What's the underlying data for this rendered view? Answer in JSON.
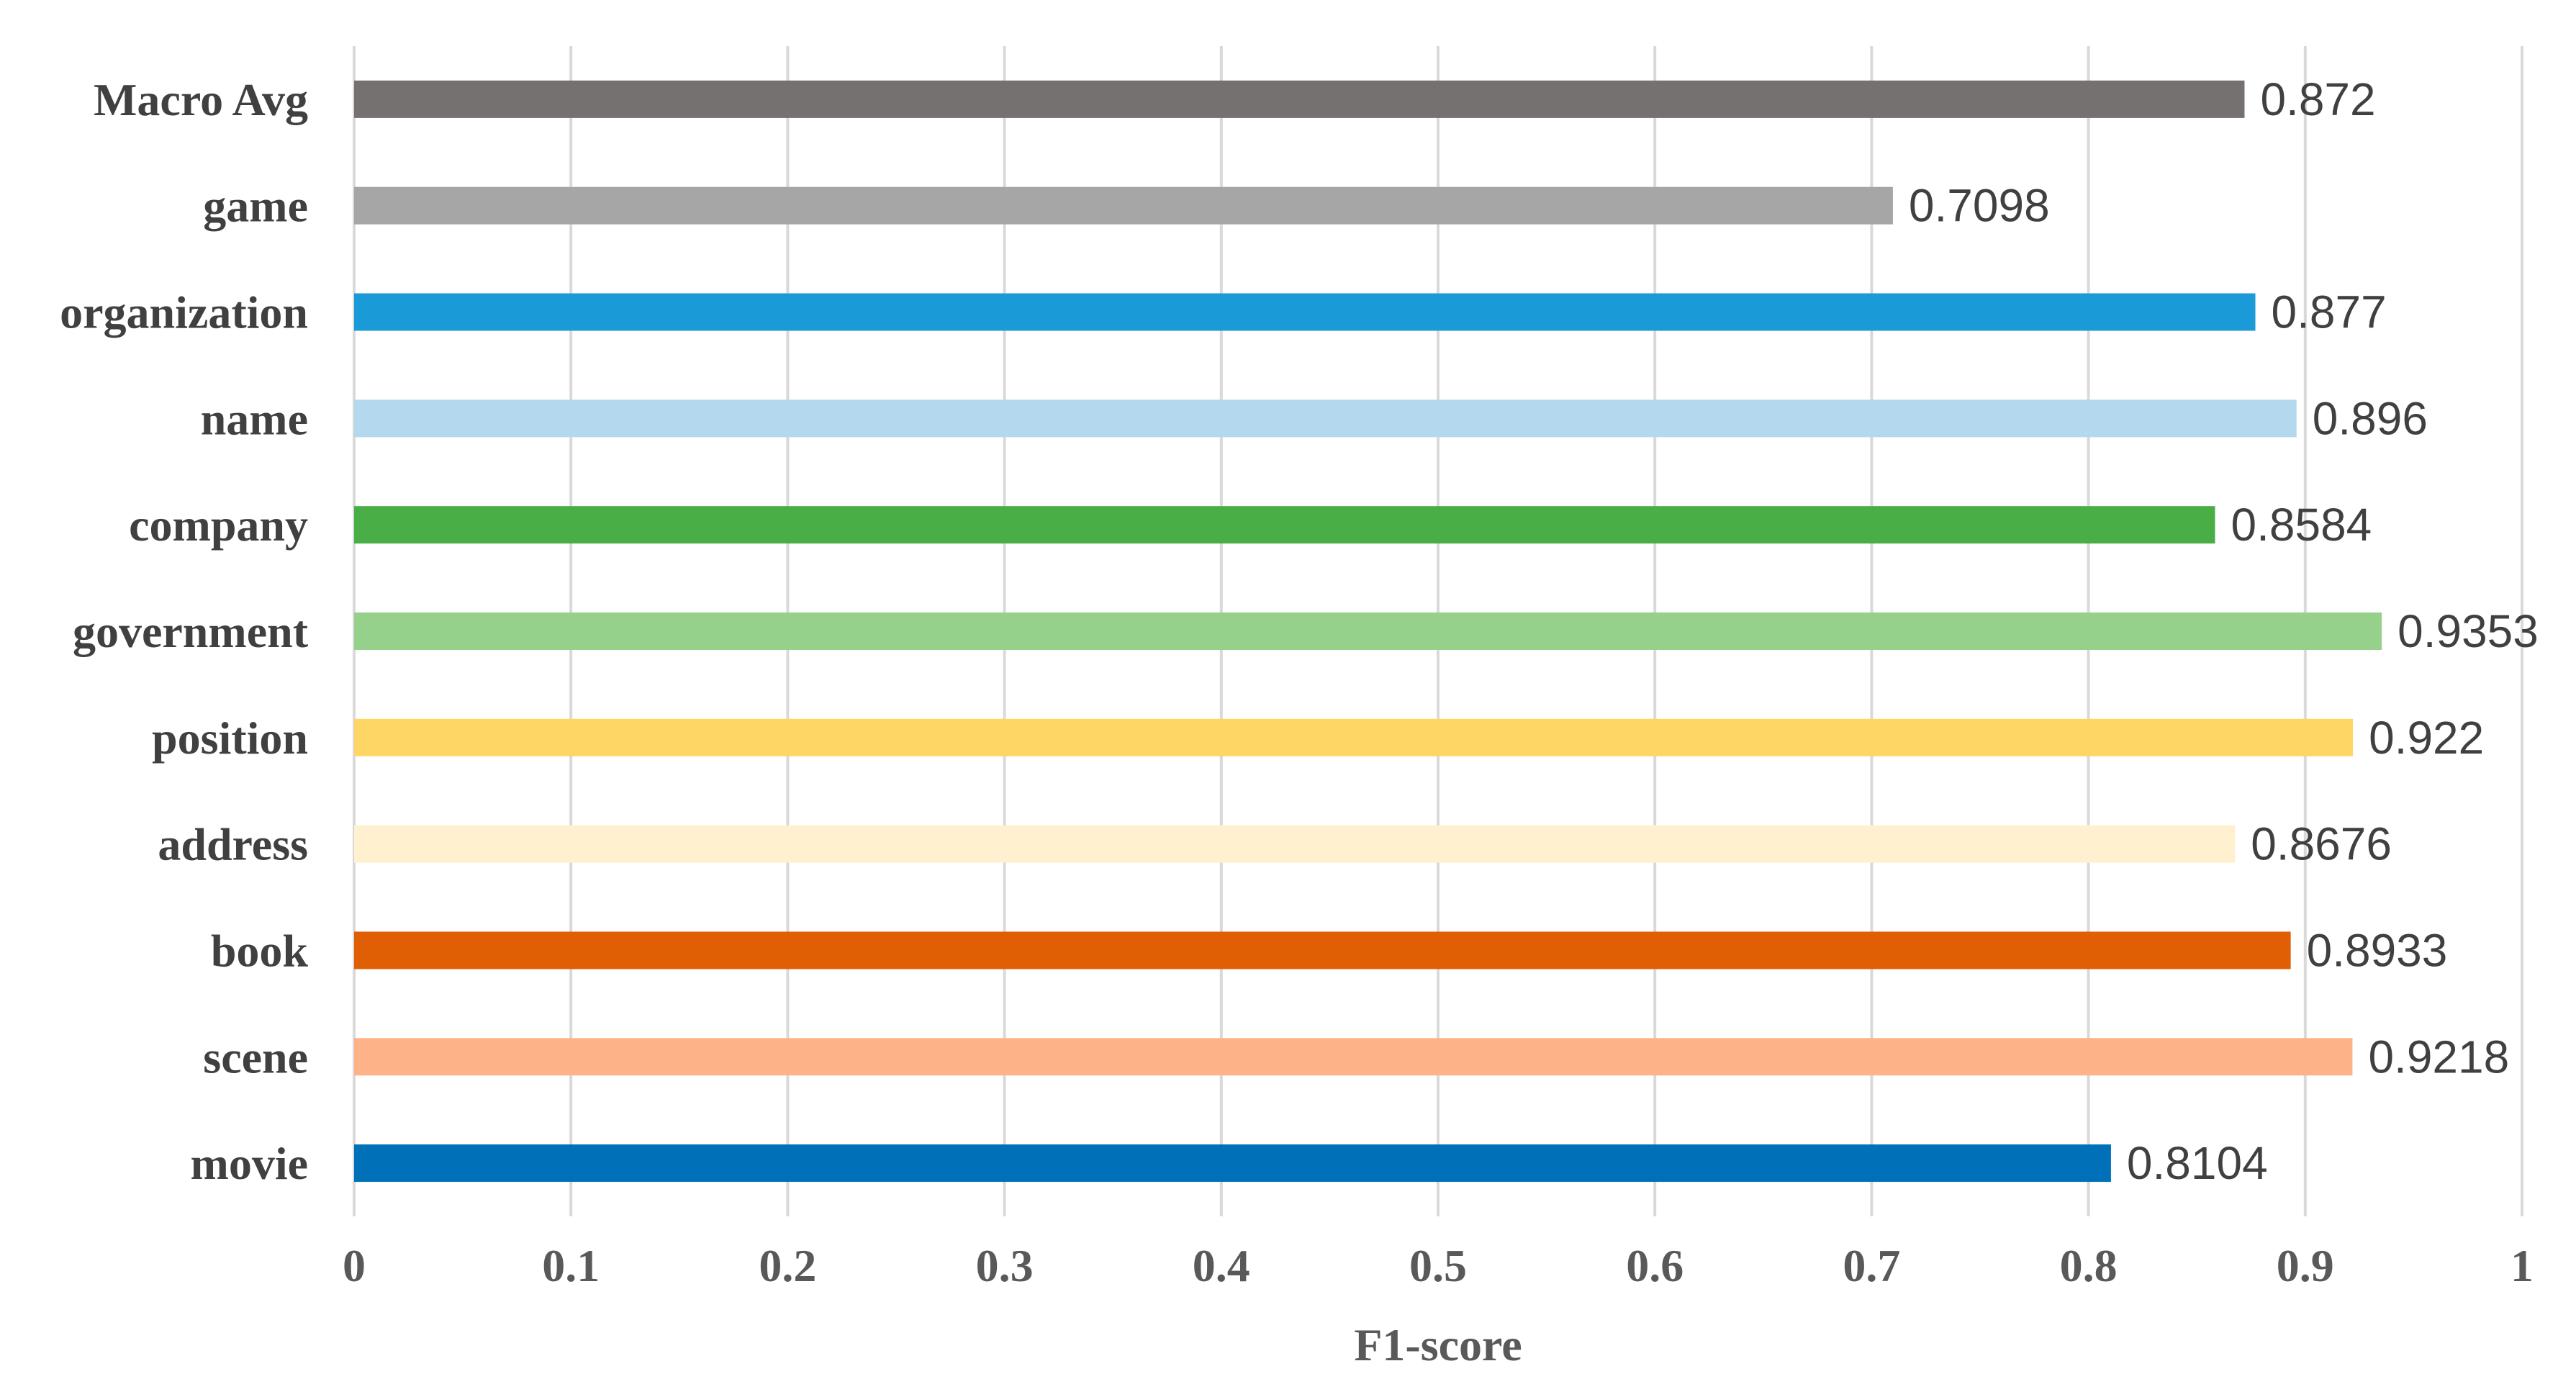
{
  "chart_data": {
    "type": "bar",
    "orientation": "horizontal",
    "categories": [
      "Macro Avg",
      "game",
      "organization",
      "name",
      "company",
      "government",
      "position",
      "address",
      "book",
      "scene",
      "movie"
    ],
    "values": [
      0.872,
      0.7098,
      0.877,
      0.896,
      0.8584,
      0.9353,
      0.922,
      0.8676,
      0.8933,
      0.9218,
      0.8104
    ],
    "value_labels": [
      "0.872",
      "0.7098",
      "0.877",
      "0.896",
      "0.8584",
      "0.9353",
      "0.922",
      "0.8676",
      "0.8933",
      "0.9218",
      "0.8104"
    ],
    "colors": [
      "#757171",
      "#a6a6a6",
      "#1a9ad6",
      "#b4d8ee",
      "#4aae46",
      "#96d18b",
      "#fdd665",
      "#fff0d0",
      "#e05e04",
      "#fdb387",
      "#0071b8"
    ],
    "xlabel": "F1-score",
    "xlim": [
      0,
      1
    ],
    "xticks": [
      "0",
      "0.1",
      "0.2",
      "0.3",
      "0.4",
      "0.5",
      "0.6",
      "0.7",
      "0.8",
      "0.9",
      "1"
    ],
    "grid": "vertical"
  }
}
